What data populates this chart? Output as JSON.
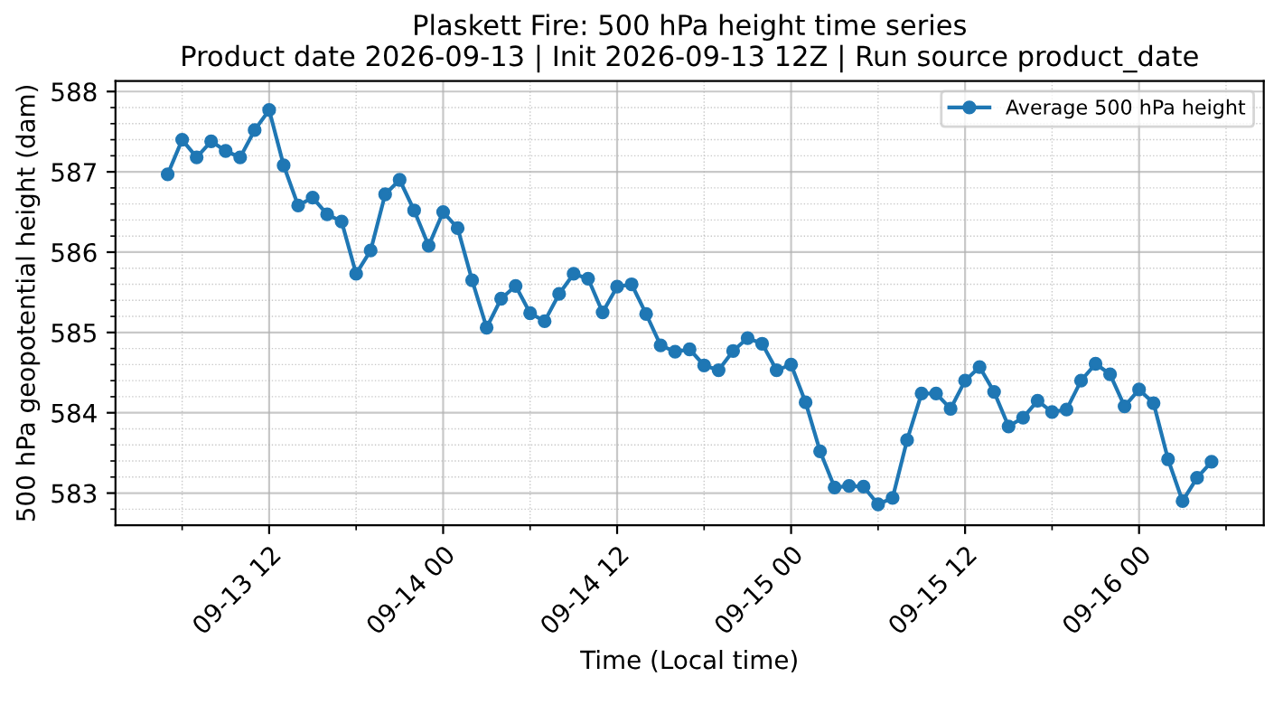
{
  "chart_data": {
    "type": "line",
    "title": "Plaskett Fire: 500 hPa height time series\nProduct date 2026-09-13 | Init 2026-09-13 12Z | Run source product_date",
    "xlabel": "Time (Local time)",
    "ylabel": "500 hPa geopotential height (dam)",
    "x": [
      "2026-09-13T05:00",
      "2026-09-13T06:00",
      "2026-09-13T07:00",
      "2026-09-13T08:00",
      "2026-09-13T09:00",
      "2026-09-13T10:00",
      "2026-09-13T11:00",
      "2026-09-13T12:00",
      "2026-09-13T13:00",
      "2026-09-13T14:00",
      "2026-09-13T15:00",
      "2026-09-13T16:00",
      "2026-09-13T17:00",
      "2026-09-13T18:00",
      "2026-09-13T19:00",
      "2026-09-13T20:00",
      "2026-09-13T21:00",
      "2026-09-13T22:00",
      "2026-09-13T23:00",
      "2026-09-14T00:00",
      "2026-09-14T01:00",
      "2026-09-14T02:00",
      "2026-09-14T03:00",
      "2026-09-14T04:00",
      "2026-09-14T05:00",
      "2026-09-14T06:00",
      "2026-09-14T07:00",
      "2026-09-14T08:00",
      "2026-09-14T09:00",
      "2026-09-14T10:00",
      "2026-09-14T11:00",
      "2026-09-14T12:00",
      "2026-09-14T13:00",
      "2026-09-14T14:00",
      "2026-09-14T15:00",
      "2026-09-14T16:00",
      "2026-09-14T17:00",
      "2026-09-14T18:00",
      "2026-09-14T19:00",
      "2026-09-14T20:00",
      "2026-09-14T21:00",
      "2026-09-14T22:00",
      "2026-09-14T23:00",
      "2026-09-15T00:00",
      "2026-09-15T01:00",
      "2026-09-15T02:00",
      "2026-09-15T03:00",
      "2026-09-15T04:00",
      "2026-09-15T05:00",
      "2026-09-15T06:00",
      "2026-09-15T07:00",
      "2026-09-15T08:00",
      "2026-09-15T09:00",
      "2026-09-15T10:00",
      "2026-09-15T11:00",
      "2026-09-15T12:00",
      "2026-09-15T13:00",
      "2026-09-15T14:00",
      "2026-09-15T15:00",
      "2026-09-15T16:00",
      "2026-09-15T17:00",
      "2026-09-15T18:00",
      "2026-09-15T19:00",
      "2026-09-15T20:00",
      "2026-09-15T21:00",
      "2026-09-15T22:00",
      "2026-09-15T23:00",
      "2026-09-16T00:00",
      "2026-09-16T01:00",
      "2026-09-16T02:00",
      "2026-09-16T03:00",
      "2026-09-16T04:00",
      "2026-09-16T05:00"
    ],
    "series": [
      {
        "name": "Average 500 hPa height",
        "color": "#1f77b4",
        "values": [
          586.97,
          587.4,
          587.18,
          587.38,
          587.26,
          587.18,
          587.52,
          587.77,
          587.08,
          586.58,
          586.68,
          586.47,
          586.38,
          585.73,
          586.02,
          586.72,
          586.9,
          586.52,
          586.08,
          586.5,
          586.3,
          585.65,
          585.06,
          585.42,
          585.58,
          585.24,
          585.14,
          585.48,
          585.73,
          585.67,
          585.25,
          585.57,
          585.6,
          585.23,
          584.84,
          584.76,
          584.79,
          584.59,
          584.53,
          584.77,
          584.93,
          584.86,
          584.53,
          584.6,
          584.13,
          583.52,
          583.07,
          583.09,
          583.08,
          582.86,
          582.94,
          583.66,
          584.24,
          584.24,
          584.05,
          584.4,
          584.57,
          584.26,
          583.83,
          583.94,
          584.15,
          584.01,
          584.04,
          584.4,
          584.61,
          584.48,
          584.08,
          584.29,
          584.12,
          583.42,
          582.9,
          583.19,
          583.39
        ]
      }
    ],
    "xlim": [
      "2026-09-13T01:24",
      "2026-09-16T08:36"
    ],
    "xticks": [
      {
        "value": "2026-09-13T06:00",
        "label": null
      },
      {
        "value": "2026-09-13T12:00",
        "label": "09-13 12"
      },
      {
        "value": "2026-09-13T18:00",
        "label": null
      },
      {
        "value": "2026-09-14T00:00",
        "label": "09-14 00"
      },
      {
        "value": "2026-09-14T06:00",
        "label": null
      },
      {
        "value": "2026-09-14T12:00",
        "label": "09-14 12"
      },
      {
        "value": "2026-09-14T18:00",
        "label": null
      },
      {
        "value": "2026-09-15T00:00",
        "label": "09-15 00"
      },
      {
        "value": "2026-09-15T06:00",
        "label": null
      },
      {
        "value": "2026-09-15T12:00",
        "label": "09-15 12"
      },
      {
        "value": "2026-09-15T18:00",
        "label": null
      },
      {
        "value": "2026-09-16T00:00",
        "label": "09-16 00"
      },
      {
        "value": "2026-09-16T06:00",
        "label": null
      }
    ],
    "ylim": [
      582.6,
      588.13
    ],
    "yticks": [
      {
        "value": 582.8,
        "label": null
      },
      583,
      {
        "value": 583.2,
        "label": null
      },
      {
        "value": 583.4,
        "label": null
      },
      {
        "value": 583.6,
        "label": null
      },
      {
        "value": 583.8,
        "label": null
      },
      584,
      {
        "value": 584.2,
        "label": null
      },
      {
        "value": 584.4,
        "label": null
      },
      {
        "value": 584.6,
        "label": null
      },
      {
        "value": 584.8,
        "label": null
      },
      585,
      {
        "value": 585.2,
        "label": null
      },
      {
        "value": 585.4,
        "label": null
      },
      {
        "value": 585.6,
        "label": null
      },
      {
        "value": 585.8,
        "label": null
      },
      586,
      {
        "value": 586.2,
        "label": null
      },
      {
        "value": 586.4,
        "label": null
      },
      {
        "value": 586.6,
        "label": null
      },
      {
        "value": 586.8,
        "label": null
      },
      587,
      {
        "value": 587.2,
        "label": null
      },
      {
        "value": 587.4,
        "label": null
      },
      {
        "value": 587.6,
        "label": null
      },
      {
        "value": 587.8,
        "label": null
      },
      588
    ],
    "grid": true,
    "legend": "top right",
    "marker": "circle",
    "line_style": "solid"
  }
}
